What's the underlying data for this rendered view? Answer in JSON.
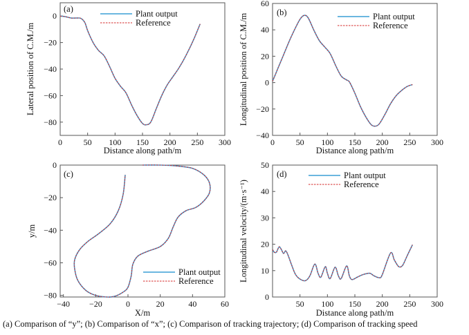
{
  "colors": {
    "plant": "#3a9fd6",
    "reference": "#d42a2a",
    "axis": "#555555"
  },
  "caption": "(a) Comparison of “y”; (b) Comparison of “x”; (c) Comparison of tracking trajectory; (d) Comparison of tracking speed",
  "chart_data": [
    {
      "type": "line",
      "panel_label": "(a)",
      "xlabel": "Distance along path/m",
      "ylabel": "Lateral position of C.M./m",
      "xlim": [
        0,
        300
      ],
      "ylim": [
        -90,
        10
      ],
      "xticks": [
        0,
        50,
        100,
        150,
        200,
        250,
        300
      ],
      "yticks": [
        0,
        -20,
        -40,
        -60,
        -80
      ],
      "xticklabels": [
        "0",
        "50",
        "100",
        "150",
        "200",
        "250",
        "300"
      ],
      "yticklabels": [
        "0",
        "−20",
        "−40",
        "−60",
        "−80"
      ],
      "legend": "top-center",
      "grid": false,
      "series": [
        {
          "name": "Plant output",
          "style": "solid",
          "x": [
            0,
            10,
            20,
            30,
            38,
            45,
            50,
            60,
            70,
            80,
            90,
            100,
            110,
            120,
            130,
            140,
            150,
            157,
            165,
            175,
            185,
            195,
            205,
            215,
            225,
            235,
            245,
            255
          ],
          "y": [
            0,
            -0.5,
            -1.5,
            -1.5,
            -1.8,
            -5,
            -11,
            -20,
            -26,
            -30,
            -38,
            -47,
            -53,
            -58,
            -67,
            -75,
            -81,
            -82,
            -80,
            -70,
            -60,
            -52,
            -46,
            -40,
            -33,
            -25,
            -16,
            -6
          ]
        },
        {
          "name": "Reference",
          "style": "dashed",
          "x": [
            0,
            10,
            20,
            30,
            38,
            45,
            50,
            60,
            70,
            80,
            90,
            100,
            110,
            120,
            130,
            140,
            150,
            157,
            165,
            175,
            185,
            195,
            205,
            215,
            225,
            235,
            245,
            255
          ],
          "y": [
            0,
            -0.5,
            -1.5,
            -1.5,
            -1.8,
            -5,
            -11,
            -20,
            -26,
            -30,
            -38,
            -47,
            -53,
            -58,
            -67,
            -75,
            -81,
            -82,
            -80,
            -70,
            -60,
            -52,
            -46,
            -40,
            -33,
            -25,
            -16,
            -6
          ]
        }
      ]
    },
    {
      "type": "line",
      "panel_label": "(b)",
      "xlabel": "Distance along path/m",
      "ylabel": "Longitudinal position of C.M./m",
      "xlim": [
        0,
        300
      ],
      "ylim": [
        -40,
        60
      ],
      "xticks": [
        0,
        50,
        100,
        150,
        200,
        250,
        300
      ],
      "yticks": [
        60,
        40,
        20,
        0,
        -20,
        -40
      ],
      "xticklabels": [
        "0",
        "50",
        "100",
        "150",
        "200",
        "250",
        "300"
      ],
      "yticklabels": [
        "60",
        "40",
        "20",
        "0",
        "−20",
        "−40"
      ],
      "legend": "top-right",
      "grid": false,
      "series": [
        {
          "name": "Plant output",
          "style": "solid",
          "x": [
            0,
            10,
            20,
            30,
            40,
            50,
            58,
            65,
            75,
            85,
            95,
            105,
            115,
            125,
            135,
            140,
            150,
            160,
            170,
            180,
            188,
            195,
            205,
            215,
            225,
            235,
            245,
            255
          ],
          "y": [
            1,
            11,
            21,
            31,
            40,
            48,
            51,
            49,
            40,
            32,
            27,
            22,
            13,
            5,
            2,
            0.5,
            -8,
            -18,
            -26,
            -32,
            -33,
            -31,
            -24,
            -16,
            -10,
            -6,
            -3,
            -1.5
          ]
        },
        {
          "name": "Reference",
          "style": "dashed",
          "x": [
            0,
            10,
            20,
            30,
            40,
            50,
            58,
            65,
            75,
            85,
            95,
            105,
            115,
            125,
            135,
            140,
            150,
            160,
            170,
            180,
            188,
            195,
            205,
            215,
            225,
            235,
            245,
            255
          ],
          "y": [
            1,
            11,
            21,
            31,
            40,
            48,
            51,
            49,
            40,
            32,
            27,
            22,
            13,
            5,
            2,
            0.5,
            -8,
            -18,
            -26,
            -32,
            -33,
            -31,
            -24,
            -16,
            -10,
            -6,
            -3,
            -1.5
          ]
        }
      ]
    },
    {
      "type": "line",
      "panel_label": "(c)",
      "xlabel": "X/m",
      "ylabel": "y/m",
      "xlim": [
        -42,
        60
      ],
      "ylim": [
        -81,
        0
      ],
      "xticks": [
        -40,
        -20,
        0,
        20,
        40,
        60
      ],
      "yticks": [
        0,
        -20,
        -40,
        -60,
        -80
      ],
      "xticklabels": [
        "−40",
        "−20",
        "0",
        "20",
        "40",
        "60"
      ],
      "yticklabels": [
        "0",
        "−20",
        "−40",
        "−60",
        "−80"
      ],
      "legend": "bottom-right",
      "grid": false,
      "series": [
        {
          "name": "Plant output",
          "style": "solid",
          "x": [
            9,
            20,
            30,
            40,
            47,
            50.5,
            50.5,
            47,
            42,
            36,
            31,
            28,
            25,
            20,
            12,
            6,
            3,
            2,
            0,
            -3,
            -8,
            -13,
            -20,
            -26,
            -31,
            -33,
            -33,
            -30,
            -25,
            -18,
            -11,
            -6,
            -3,
            -1.7
          ],
          "y": [
            0,
            0,
            -0.5,
            -2,
            -6,
            -11,
            -17,
            -22,
            -26,
            -28,
            -32,
            -38,
            -45,
            -50,
            -53,
            -56,
            -61,
            -68,
            -75,
            -78,
            -80.5,
            -81,
            -80,
            -77,
            -71,
            -64,
            -58,
            -52,
            -47,
            -42,
            -36,
            -28,
            -18,
            -6
          ]
        },
        {
          "name": "Reference",
          "style": "dashed",
          "x": [
            9,
            20,
            30,
            40,
            47,
            50.5,
            50.5,
            47,
            42,
            36,
            31,
            28,
            25,
            20,
            12,
            6,
            3,
            2,
            0,
            -3,
            -8,
            -13,
            -20,
            -26,
            -31,
            -33,
            -33,
            -30,
            -25,
            -18,
            -11,
            -6,
            -3,
            -1.7
          ],
          "y": [
            0,
            0,
            -0.5,
            -2,
            -6,
            -11,
            -17,
            -22,
            -26,
            -28,
            -32,
            -38,
            -45,
            -50,
            -53,
            -56,
            -61,
            -68,
            -75,
            -78,
            -80.5,
            -81,
            -80,
            -77,
            -71,
            -64,
            -58,
            -52,
            -47,
            -42,
            -36,
            -28,
            -18,
            -6
          ]
        }
      ]
    },
    {
      "type": "line",
      "panel_label": "(d)",
      "xlabel": "Distance along path/m",
      "ylabel": "Longitudinal velocity/(m·s⁻¹)",
      "xlim": [
        0,
        300
      ],
      "ylim": [
        0,
        50
      ],
      "xticks": [
        50,
        100,
        150,
        200,
        250,
        300
      ],
      "yticks": [
        0,
        10,
        20,
        30,
        40,
        50
      ],
      "xticklabels": [
        "50",
        "100",
        "150",
        "200",
        "250",
        "300"
      ],
      "yticklabels": [
        "0",
        "10",
        "20",
        "30",
        "40",
        "50"
      ],
      "legend": "top-center",
      "grid": false,
      "series": [
        {
          "name": "Plant output",
          "style": "solid",
          "x": [
            0,
            3,
            7,
            12,
            16,
            20,
            24,
            28,
            35,
            42,
            50,
            60,
            68,
            77,
            83,
            88,
            96,
            100,
            105,
            114,
            120,
            125,
            135,
            140,
            145,
            155,
            165,
            177,
            185,
            195,
            200,
            215,
            222,
            230,
            237,
            245,
            255
          ],
          "y": [
            18,
            17,
            17,
            19,
            18,
            16.5,
            17.5,
            16,
            12,
            8.5,
            6.8,
            6.2,
            8,
            12.5,
            9,
            7.5,
            11.5,
            9,
            7,
            11.3,
            8,
            7,
            11.8,
            8,
            6.6,
            7.6,
            8.5,
            9,
            8,
            7.3,
            8.5,
            16.7,
            14,
            11.5,
            12,
            15.5,
            19.8
          ]
        },
        {
          "name": "Reference",
          "style": "dashed",
          "x": [
            0,
            3,
            7,
            12,
            16,
            20,
            24,
            28,
            35,
            42,
            50,
            60,
            68,
            77,
            83,
            88,
            96,
            100,
            105,
            114,
            120,
            125,
            135,
            140,
            145,
            155,
            165,
            177,
            185,
            195,
            200,
            215,
            222,
            230,
            237,
            245,
            255
          ],
          "y": [
            18,
            17,
            17,
            19,
            18,
            16.5,
            17.5,
            16,
            12,
            8.5,
            6.8,
            6.2,
            8,
            12.5,
            9,
            7.5,
            11.5,
            9,
            7,
            11.3,
            8,
            7,
            11.8,
            8,
            6.6,
            7.6,
            8.5,
            9,
            8,
            7.3,
            8.5,
            16.7,
            14,
            11.5,
            12,
            15.5,
            19.8
          ]
        }
      ]
    }
  ]
}
